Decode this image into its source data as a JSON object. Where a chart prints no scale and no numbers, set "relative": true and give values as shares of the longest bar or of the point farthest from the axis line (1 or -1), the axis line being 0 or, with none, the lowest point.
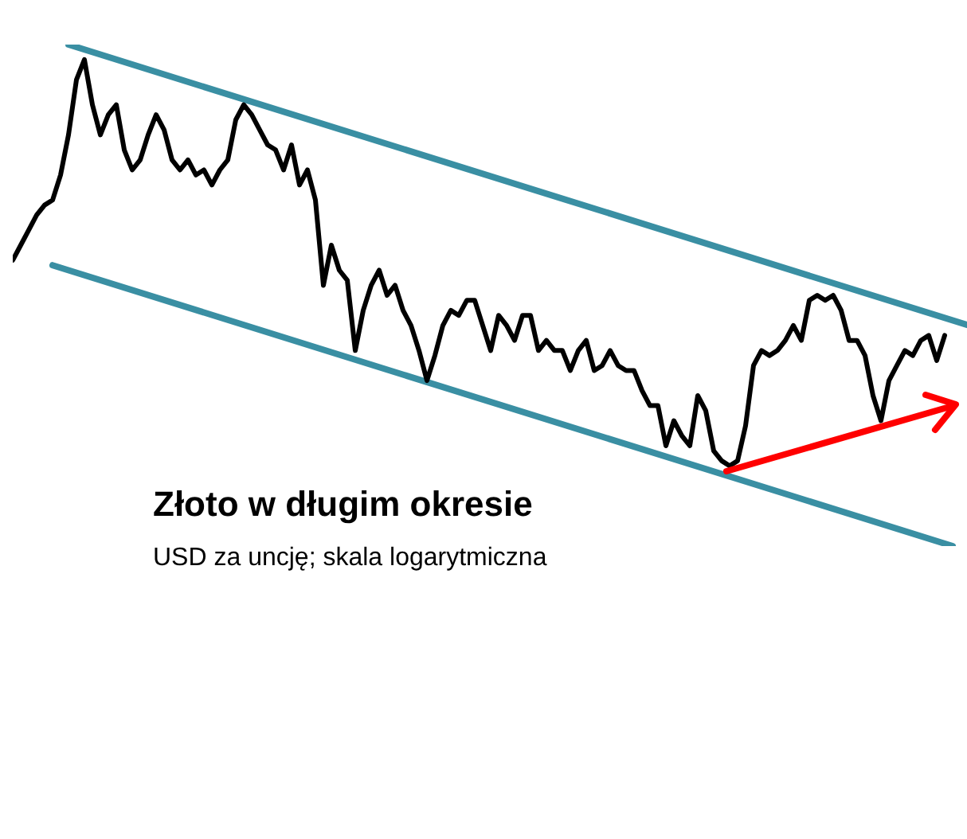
{
  "chart_data": {
    "type": "line",
    "title": "Złoto w długim okresie",
    "subtitle": "USD za uncję; skala logarytmiczna",
    "relative": true,
    "categories": [
      null,
      null,
      null,
      null,
      null,
      null,
      null,
      null,
      null,
      null,
      null,
      null,
      null,
      null,
      null,
      null,
      null,
      null,
      null,
      null,
      null,
      null,
      null,
      null,
      null,
      null,
      null,
      null,
      null,
      null,
      null,
      null,
      null,
      null,
      null,
      null,
      null,
      null,
      null,
      null,
      null,
      null,
      null,
      null,
      null,
      null,
      null,
      null,
      null,
      null,
      null,
      null,
      null,
      null,
      null,
      null,
      null,
      null,
      null,
      null,
      null,
      null,
      null,
      null,
      null,
      null,
      null,
      null,
      null,
      null,
      null,
      null,
      null,
      null,
      null,
      null,
      null,
      null,
      null,
      null,
      null,
      null,
      null,
      null,
      null,
      null,
      null,
      null,
      null,
      null,
      null,
      null,
      null,
      null,
      null,
      null,
      null,
      null,
      null,
      null,
      null,
      null,
      null,
      null,
      null,
      null,
      null,
      null,
      null,
      null,
      null,
      null,
      null,
      null,
      null,
      null,
      null,
      null,
      null,
      null,
      null
    ],
    "series": [
      {
        "color": "#000000",
        "values": [
          0.57,
          0.6,
          0.63,
          0.66,
          0.68,
          0.69,
          0.74,
          0.82,
          0.93,
          0.97,
          0.88,
          0.82,
          0.86,
          0.88,
          0.79,
          0.75,
          0.77,
          0.82,
          0.86,
          0.83,
          0.77,
          0.75,
          0.77,
          0.74,
          0.75,
          0.72,
          0.75,
          0.77,
          0.85,
          0.88,
          0.86,
          0.83,
          0.8,
          0.79,
          0.75,
          0.8,
          0.72,
          0.75,
          0.69,
          0.52,
          0.6,
          0.55,
          0.53,
          0.39,
          0.47,
          0.52,
          0.55,
          0.5,
          0.52,
          0.47,
          0.44,
          0.39,
          0.33,
          0.38,
          0.44,
          0.47,
          0.46,
          0.49,
          0.49,
          0.44,
          0.39,
          0.46,
          0.44,
          0.41,
          0.46,
          0.46,
          0.39,
          0.41,
          0.39,
          0.39,
          0.35,
          0.39,
          0.41,
          0.35,
          0.36,
          0.39,
          0.36,
          0.35,
          0.35,
          0.31,
          0.28,
          0.28,
          0.2,
          0.25,
          0.22,
          0.2,
          0.3,
          0.27,
          0.19,
          0.17,
          0.16,
          0.17,
          0.24,
          0.36,
          0.39,
          0.38,
          0.39,
          0.41,
          0.44,
          0.41,
          0.49,
          0.5,
          0.49,
          0.5,
          0.47,
          0.41,
          0.41,
          0.38,
          0.3,
          0.25,
          0.33,
          0.36,
          0.39,
          0.38,
          0.41,
          0.42,
          0.37,
          0.42,
          null,
          null,
          null
        ]
      },
      {
        "color": "#3a8fa3",
        "values": [
          null,
          null,
          null,
          null,
          null,
          null,
          null,
          1,
          null,
          null,
          null,
          null,
          null,
          null,
          null,
          null,
          null,
          null,
          null,
          null,
          null,
          null,
          null,
          null,
          null,
          null,
          null,
          null,
          null,
          null,
          null,
          null,
          null,
          null,
          null,
          null,
          null,
          null,
          null,
          null,
          null,
          null,
          null,
          null,
          null,
          null,
          null,
          null,
          null,
          null,
          null,
          null,
          null,
          null,
          null,
          null,
          null,
          null,
          null,
          null,
          null,
          null,
          null,
          null,
          null,
          null,
          null,
          null,
          null,
          null,
          null,
          null,
          null,
          null,
          null,
          null,
          null,
          null,
          null,
          null,
          null,
          null,
          null,
          null,
          null,
          null,
          null,
          null,
          null,
          null,
          null,
          null,
          null,
          null,
          null,
          null,
          null,
          null,
          null,
          null,
          null,
          null,
          null,
          null,
          null,
          null,
          null,
          null,
          null,
          null,
          null,
          null,
          null,
          null,
          null,
          null,
          null,
          null,
          null,
          null,
          0.44
        ]
      },
      {
        "color": "#3a8fa3",
        "values": [
          null,
          null,
          null,
          null,
          null,
          0.56,
          null,
          null,
          null,
          null,
          null,
          null,
          null,
          null,
          null,
          null,
          null,
          null,
          null,
          null,
          null,
          null,
          null,
          null,
          null,
          null,
          null,
          null,
          null,
          null,
          null,
          null,
          null,
          null,
          null,
          null,
          null,
          null,
          null,
          null,
          null,
          null,
          null,
          null,
          null,
          null,
          null,
          null,
          null,
          null,
          null,
          null,
          null,
          null,
          null,
          null,
          null,
          null,
          null,
          null,
          null,
          null,
          null,
          null,
          null,
          null,
          null,
          null,
          null,
          null,
          null,
          null,
          null,
          null,
          null,
          null,
          null,
          null,
          null,
          null,
          null,
          null,
          null,
          null,
          null,
          null,
          null,
          null,
          null,
          null,
          null,
          null,
          null,
          null,
          null,
          null,
          null,
          null,
          null,
          null,
          null,
          null,
          null,
          null,
          null,
          null,
          null,
          null,
          null,
          null,
          null,
          null,
          null,
          null,
          null,
          null,
          null,
          null,
          0,
          null,
          null
        ]
      }
    ]
  }
}
